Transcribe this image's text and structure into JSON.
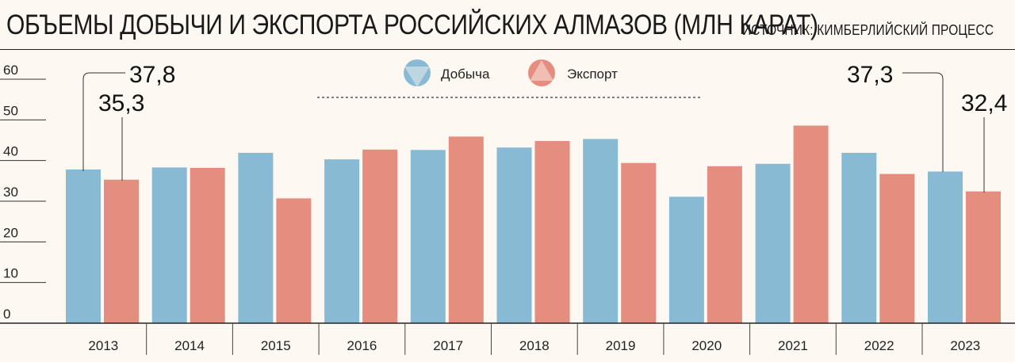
{
  "header": {
    "title": "ОБЪЕМЫ ДОБЫЧИ И ЭКСПОРТА РОССИЙСКИХ АЛМАЗОВ (МЛН КАРАТ)",
    "source": "ИСТОЧНИК: КИМБЕРЛИЙСКИЙ ПРОЦЕСС"
  },
  "colors": {
    "production": "#89bad4",
    "export": "#e58e80",
    "background": "#fdf8f1"
  },
  "chart_data": {
    "type": "bar",
    "title": "ОБЪЕМЫ ДОБЫЧИ И ЭКСПОРТА РОССИЙСКИХ АЛМАЗОВ (МЛН КАРАТ)",
    "categories": [
      "2013",
      "2014",
      "2015",
      "2016",
      "2017",
      "2018",
      "2019",
      "2020",
      "2021",
      "2022",
      "2023"
    ],
    "series": [
      {
        "name": "Добыча",
        "values": [
          37.8,
          38.3,
          41.9,
          40.3,
          42.6,
          43.2,
          45.3,
          31.1,
          39.2,
          41.9,
          37.3
        ]
      },
      {
        "name": "Экспорт",
        "values": [
          35.3,
          38.2,
          30.7,
          42.7,
          45.9,
          44.8,
          39.4,
          38.6,
          48.6,
          36.7,
          32.4
        ]
      }
    ],
    "yticks": [
      "0",
      "10",
      "20",
      "30",
      "40",
      "50",
      "60"
    ],
    "ylim": [
      0,
      60
    ],
    "legend_position": "top-center",
    "callouts": [
      "37,8",
      "35,3",
      "37,3",
      "32,4"
    ]
  }
}
